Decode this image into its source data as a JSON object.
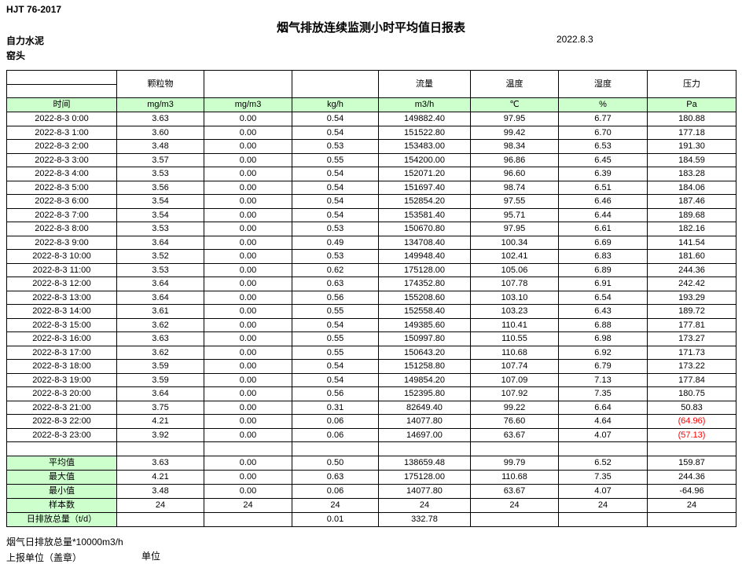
{
  "meta": {
    "standard_code": "HJT  76-2017",
    "title": "烟气排放连续监测小时平均值日报表",
    "company": "自力水泥",
    "station": "窑头",
    "date": "2022.8.3"
  },
  "table": {
    "param_headers": [
      "颗粒物",
      "",
      "",
      "流量",
      "温度",
      "湿度",
      "压力"
    ],
    "units_row": [
      "时间",
      "mg/m3",
      "mg/m3",
      "kg/h",
      "m3/h",
      "℃",
      "%",
      "Pa"
    ],
    "rows": [
      {
        "time": "2022-8-3 0:00",
        "values": [
          "3.63",
          "0.00",
          "0.54",
          "149882.40",
          "97.95",
          "6.77",
          "180.88"
        ]
      },
      {
        "time": "2022-8-3 1:00",
        "values": [
          "3.60",
          "0.00",
          "0.54",
          "151522.80",
          "99.42",
          "6.70",
          "177.18"
        ]
      },
      {
        "time": "2022-8-3 2:00",
        "values": [
          "3.48",
          "0.00",
          "0.53",
          "153483.00",
          "98.34",
          "6.53",
          "191.30"
        ]
      },
      {
        "time": "2022-8-3 3:00",
        "values": [
          "3.57",
          "0.00",
          "0.55",
          "154200.00",
          "96.86",
          "6.45",
          "184.59"
        ]
      },
      {
        "time": "2022-8-3 4:00",
        "values": [
          "3.53",
          "0.00",
          "0.54",
          "152071.20",
          "96.60",
          "6.39",
          "183.28"
        ]
      },
      {
        "time": "2022-8-3 5:00",
        "values": [
          "3.56",
          "0.00",
          "0.54",
          "151697.40",
          "98.74",
          "6.51",
          "184.06"
        ]
      },
      {
        "time": "2022-8-3 6:00",
        "values": [
          "3.54",
          "0.00",
          "0.54",
          "152854.20",
          "97.55",
          "6.46",
          "187.46"
        ]
      },
      {
        "time": "2022-8-3 7:00",
        "values": [
          "3.54",
          "0.00",
          "0.54",
          "153581.40",
          "95.71",
          "6.44",
          "189.68"
        ]
      },
      {
        "time": "2022-8-3 8:00",
        "values": [
          "3.53",
          "0.00",
          "0.53",
          "150670.80",
          "97.95",
          "6.61",
          "182.16"
        ]
      },
      {
        "time": "2022-8-3 9:00",
        "values": [
          "3.64",
          "0.00",
          "0.49",
          "134708.40",
          "100.34",
          "6.69",
          "141.54"
        ]
      },
      {
        "time": "2022-8-3 10:00",
        "values": [
          "3.52",
          "0.00",
          "0.53",
          "149948.40",
          "102.41",
          "6.83",
          "181.60"
        ]
      },
      {
        "time": "2022-8-3 11:00",
        "values": [
          "3.53",
          "0.00",
          "0.62",
          "175128.00",
          "105.06",
          "6.89",
          "244.36"
        ]
      },
      {
        "time": "2022-8-3 12:00",
        "values": [
          "3.64",
          "0.00",
          "0.63",
          "174352.80",
          "107.78",
          "6.91",
          "242.42"
        ]
      },
      {
        "time": "2022-8-3 13:00",
        "values": [
          "3.64",
          "0.00",
          "0.56",
          "155208.60",
          "103.10",
          "6.54",
          "193.29"
        ]
      },
      {
        "time": "2022-8-3 14:00",
        "values": [
          "3.61",
          "0.00",
          "0.55",
          "152558.40",
          "103.23",
          "6.43",
          "189.72"
        ]
      },
      {
        "time": "2022-8-3 15:00",
        "values": [
          "3.62",
          "0.00",
          "0.54",
          "149385.60",
          "110.41",
          "6.88",
          "177.81"
        ]
      },
      {
        "time": "2022-8-3 16:00",
        "values": [
          "3.63",
          "0.00",
          "0.55",
          "150997.80",
          "110.55",
          "6.98",
          "173.27"
        ]
      },
      {
        "time": "2022-8-3 17:00",
        "values": [
          "3.62",
          "0.00",
          "0.55",
          "150643.20",
          "110.68",
          "6.92",
          "171.73"
        ]
      },
      {
        "time": "2022-8-3 18:00",
        "values": [
          "3.59",
          "0.00",
          "0.54",
          "151258.80",
          "107.74",
          "6.79",
          "173.22"
        ]
      },
      {
        "time": "2022-8-3 19:00",
        "values": [
          "3.59",
          "0.00",
          "0.54",
          "149854.20",
          "107.09",
          "7.13",
          "177.84"
        ]
      },
      {
        "time": "2022-8-3 20:00",
        "values": [
          "3.64",
          "0.00",
          "0.56",
          "152395.80",
          "107.92",
          "7.35",
          "180.75"
        ]
      },
      {
        "time": "2022-8-3 21:00",
        "values": [
          "3.75",
          "0.00",
          "0.31",
          "82649.40",
          "99.22",
          "6.64",
          "50.83"
        ]
      },
      {
        "time": "2022-8-3 22:00",
        "values": [
          "4.21",
          "0.00",
          "0.06",
          "14077.80",
          "76.60",
          "4.64",
          "(64.96)"
        ]
      },
      {
        "time": "2022-8-3 23:00",
        "values": [
          "3.92",
          "0.00",
          "0.06",
          "14697.00",
          "63.67",
          "4.07",
          "(57.13)"
        ]
      }
    ],
    "summary_rows": [
      {
        "label": "平均值",
        "values": [
          "3.63",
          "0.00",
          "0.50",
          "138659.48",
          "99.79",
          "6.52",
          "159.87"
        ]
      },
      {
        "label": "最大值",
        "values": [
          "4.21",
          "0.00",
          "0.63",
          "175128.00",
          "110.68",
          "7.35",
          "244.36"
        ]
      },
      {
        "label": "最小值",
        "values": [
          "3.48",
          "0.00",
          "0.06",
          "14077.80",
          "63.67",
          "4.07",
          "-64.96"
        ]
      },
      {
        "label": "样本数",
        "values": [
          "24",
          "24",
          "24",
          "24",
          "24",
          "24",
          "24"
        ]
      },
      {
        "label": "日排放总量（t/d）",
        "values": [
          "",
          "",
          "0.01",
          "332.78",
          "",
          "",
          ""
        ]
      }
    ]
  },
  "footer": {
    "note": "烟气日排放总量*10000m3/h",
    "report_unit_label": "上报单位（盖章）",
    "unit_label": "单位"
  },
  "colors": {
    "header_green": "#ccffcc",
    "negative_red": "#ff0000"
  }
}
